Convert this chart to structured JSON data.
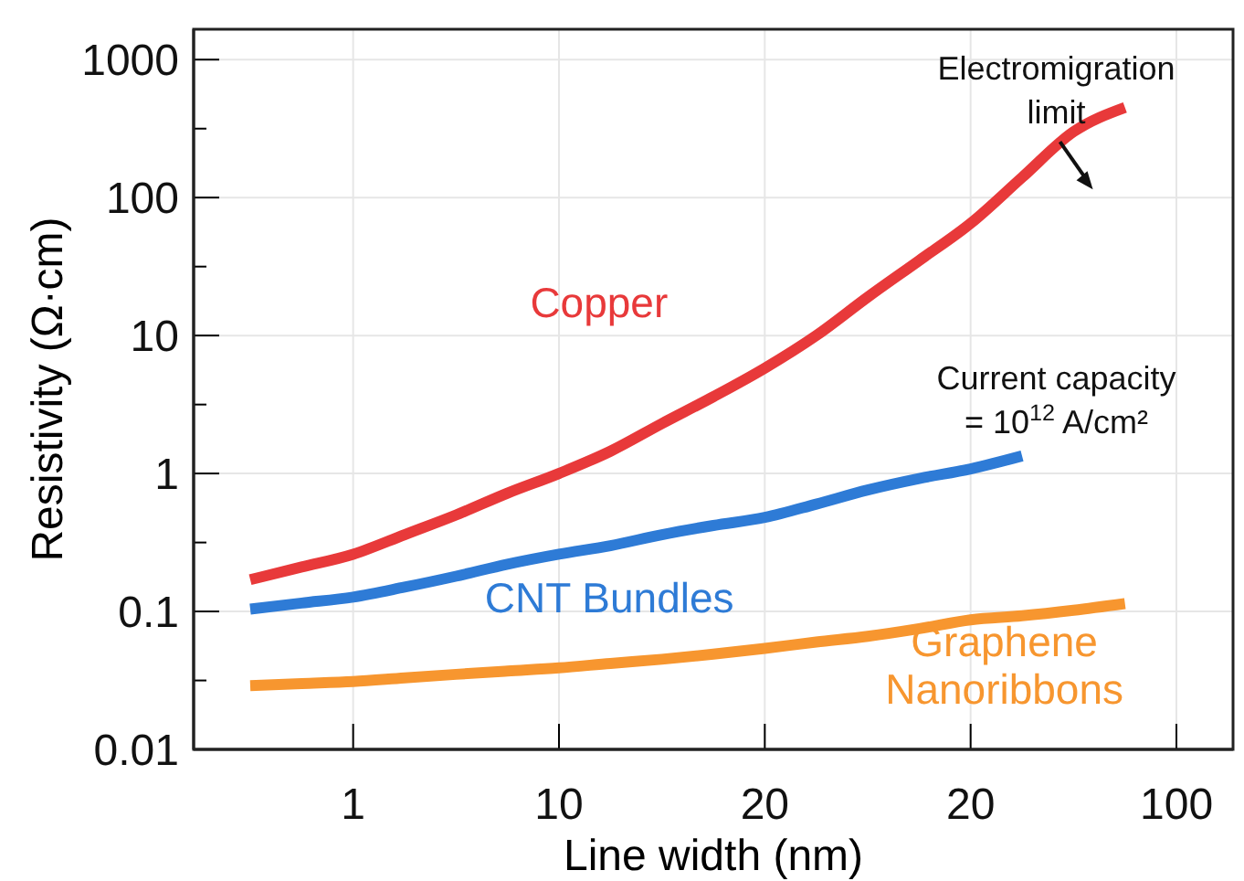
{
  "chart_data": {
    "type": "line",
    "xlabel": "Line width (nm)",
    "ylabel": "Resistivity (Ω·cm)",
    "log": "y",
    "grid": true,
    "line_style": "solid",
    "marker": "none",
    "categories": [
      null,
      null,
      "1",
      null,
      null,
      null,
      "10",
      null,
      null,
      null,
      "20",
      null,
      null,
      null,
      "20",
      null,
      null,
      null,
      "100"
    ],
    "ylim": [
      0.01,
      1660
    ],
    "yticks": [
      0.01,
      {
        "value": 0.0316,
        "label": null
      },
      0.1,
      {
        "value": 0.316,
        "label": null
      },
      1,
      {
        "value": 3.16,
        "label": null
      },
      10,
      {
        "value": 31.6,
        "label": null
      },
      100,
      {
        "value": 316,
        "label": null
      },
      1000
    ],
    "series": [
      {
        "name": "Copper",
        "color": "#e8393a",
        "values": [
          0.17,
          0.21,
          0.26,
          0.36,
          0.5,
          0.72,
          1.0,
          1.45,
          2.3,
          3.6,
          5.8,
          10,
          19,
          35,
          65,
          140,
          300,
          450,
          null
        ]
      },
      {
        "name": "CNT Bundles",
        "color": "#2e7bd6",
        "values": [
          0.104,
          0.115,
          0.127,
          0.15,
          0.18,
          0.22,
          0.26,
          0.3,
          0.36,
          0.42,
          0.48,
          0.6,
          0.76,
          0.92,
          1.08,
          1.34,
          null,
          null,
          null
        ]
      },
      {
        "name": "Graphene Nanoribbons",
        "color": "#f7962f",
        "values": [
          0.029,
          0.03,
          0.031,
          0.033,
          0.035,
          0.037,
          0.039,
          0.042,
          0.045,
          0.049,
          0.054,
          0.06,
          0.066,
          0.075,
          0.087,
          0.093,
          0.102,
          0.114,
          null
        ]
      }
    ],
    "annotations": [
      "Electromigration limit",
      "Current capacity = 10$^{12}$ A/cm²"
    ]
  }
}
